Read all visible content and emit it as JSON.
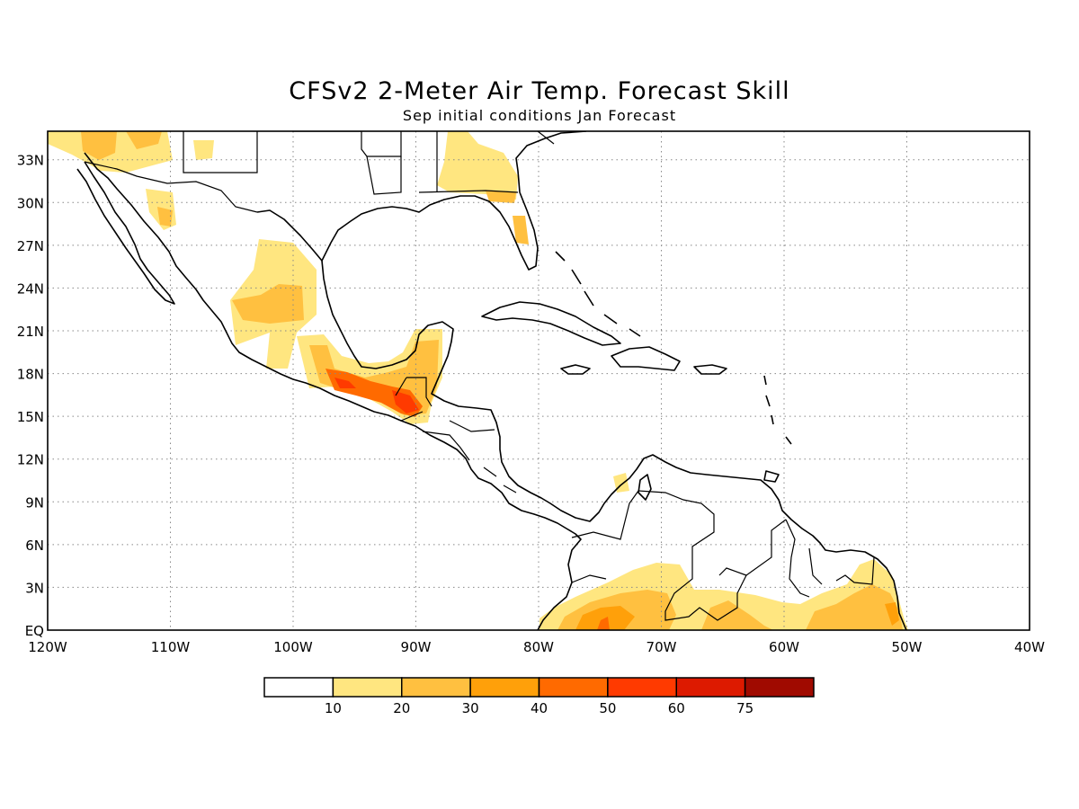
{
  "header": {
    "title": "CFSv2 2-Meter Air Temp. Forecast Skill",
    "subtitle": "Sep initial conditions  Jan Forecast"
  },
  "map": {
    "projection": "equirectangular",
    "lon_range": [
      -120,
      -40
    ],
    "lat_range": [
      0,
      35
    ],
    "lon_labels": [
      "120W",
      "110W",
      "100W",
      "90W",
      "80W",
      "70W",
      "60W",
      "50W",
      "40W"
    ],
    "lat_labels": [
      "EQ",
      "3N",
      "6N",
      "9N",
      "12N",
      "15N",
      "18N",
      "21N",
      "24N",
      "27N",
      "30N",
      "33N"
    ],
    "grid": "dotted",
    "coastline_color": "#000000"
  },
  "legend": {
    "labels": [
      "10",
      "20",
      "30",
      "40",
      "50",
      "60",
      "75"
    ],
    "colors": [
      "#ffffff",
      "#ffe680",
      "#ffc040",
      "#ffa00a",
      "#ff6a00",
      "#ff3a00",
      "#dd1a00",
      "#a00a00"
    ]
  }
}
